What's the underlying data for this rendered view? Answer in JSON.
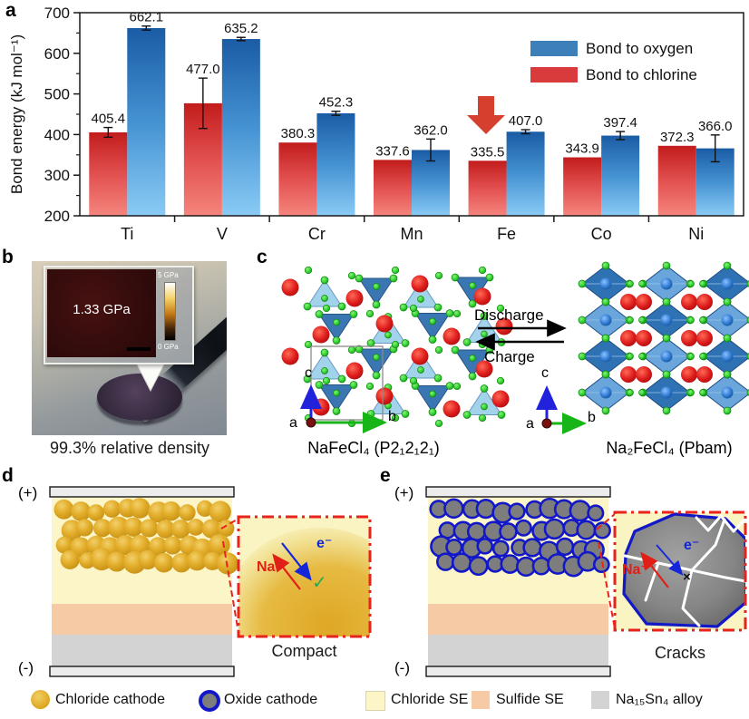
{
  "panels": {
    "a": "a",
    "b": "b",
    "c": "c",
    "d": "d",
    "e": "e"
  },
  "chart_data": {
    "type": "bar",
    "title": "",
    "categories": [
      "Ti",
      "V",
      "Cr",
      "Mn",
      "Fe",
      "Co",
      "Ni"
    ],
    "series": [
      {
        "name": "Bond to oxygen",
        "color": "#3c7fb9",
        "slot": 1,
        "values": [
          662.1,
          635.2,
          452.3,
          362.0,
          407.0,
          397.4,
          366.0
        ],
        "errors": [
          5,
          4,
          5,
          27,
          5,
          10,
          33
        ]
      },
      {
        "name": "Bond to chlorine",
        "color": "#d93b3c",
        "slot": 0,
        "values": [
          405.4,
          477.0,
          380.3,
          337.6,
          335.5,
          343.9,
          372.3
        ],
        "errors": [
          12,
          62,
          0,
          0,
          0,
          0,
          0
        ]
      }
    ],
    "xlabel": "",
    "ylabel": "Bond energy (kJ mol⁻¹)",
    "ylim": [
      200,
      700
    ],
    "yticks": [
      200,
      300,
      400,
      500,
      600,
      700
    ],
    "grid": false,
    "legend_position": "top-right",
    "annotation": {
      "type": "down-arrow",
      "target": "Fe",
      "color": "#d5402e"
    }
  },
  "panel_b": {
    "inset_value": "1.33 GPa",
    "colorbar_top": "5 GPa",
    "colorbar_bottom": "0 GPa",
    "caption": "99.3% relative density"
  },
  "panel_c": {
    "discharge": "Discharge",
    "charge": "Charge",
    "left_label": "NaFeCl₄ (P2₁2₁2₁)",
    "right_label": "Na₂FeCl₄ (Pbam)",
    "axes": {
      "a": "a",
      "b": "b",
      "c": "c"
    },
    "atom_colors": {
      "sodium": "#d01212",
      "chlorine": "#35d435",
      "iron_polyhedron": "#2f72b4"
    }
  },
  "electrodes": {
    "plus": "(+)",
    "minus": "(-)"
  },
  "panel_d": {
    "na_label": "Na⁺",
    "e_label": "e⁻",
    "check": "✓",
    "caption": "Compact"
  },
  "panel_e": {
    "na_label": "Na⁺",
    "e_label": "e⁻",
    "cross": "×",
    "caption": "Cracks"
  },
  "legend": {
    "items": [
      {
        "label": "Chloride cathode",
        "swatch": "gold-circle",
        "color": "#dca61d"
      },
      {
        "label": "Oxide cathode",
        "swatch": "grey-circle-blue-ring",
        "color": "#7d7d7d",
        "ring": "#1218c8"
      },
      {
        "label": "Chloride SE",
        "swatch": "pale-yellow-square",
        "color": "#fbf5c8"
      },
      {
        "label": "Sulfide SE",
        "swatch": "peach-square",
        "color": "#f6caa4"
      },
      {
        "label": "Na₁₅Sn₄ alloy",
        "swatch": "grey-square",
        "color": "#d3d3d3"
      }
    ]
  }
}
